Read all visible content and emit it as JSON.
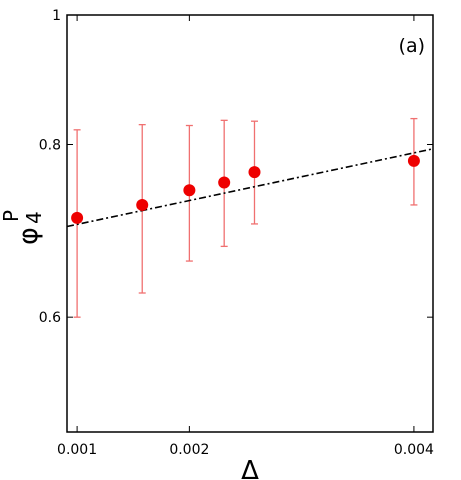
{
  "chart_data": {
    "type": "scatter",
    "annotation": "(a)",
    "xlabel": "Δ",
    "ylabel": {
      "base": "φ",
      "sub": "4",
      "sup": "P"
    },
    "xlim": [
      0.00091,
      0.00417
    ],
    "ylim": [
      0.467,
      0.95
    ],
    "y_top_tick_label": "1",
    "x_ticks": [
      0.001,
      0.002,
      0.004
    ],
    "x_tick_labels": [
      "0.001",
      "0.002",
      "0.004"
    ],
    "y_ticks": [
      0.6,
      0.8
    ],
    "y_tick_labels": [
      "0.6",
      "0.8"
    ],
    "grid": false,
    "series": [
      {
        "type": "scatter-errorbar",
        "color": "#ee0000",
        "error_color": "#f07070",
        "x": [
          0.001,
          0.00158,
          0.002,
          0.00231,
          0.00258,
          0.004
        ],
        "y": [
          0.715,
          0.73,
          0.747,
          0.756,
          0.768,
          0.781
        ],
        "y_low": [
          0.6,
          0.628,
          0.665,
          0.682,
          0.708,
          0.73
        ],
        "y_high": [
          0.817,
          0.823,
          0.822,
          0.828,
          0.827,
          0.83
        ]
      },
      {
        "type": "line",
        "style": "dashdot",
        "color": "#000000",
        "x": [
          0.00091,
          0.00417
        ],
        "y": [
          0.705,
          0.795
        ]
      }
    ]
  }
}
